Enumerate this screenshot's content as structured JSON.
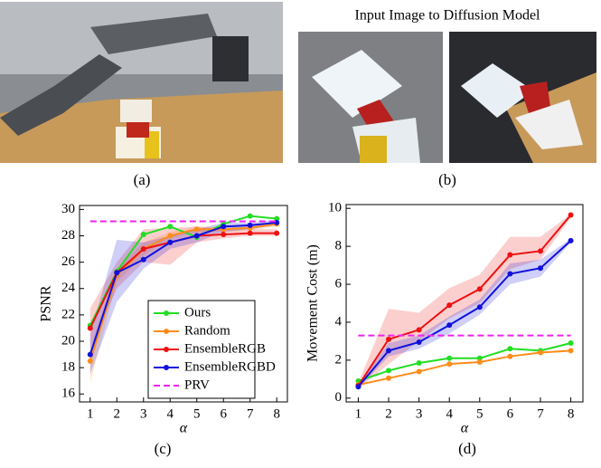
{
  "image_title": "Input Image to Diffusion Model",
  "captions": {
    "a": "(a)",
    "b": "(b)"
  },
  "chart_data": [
    {
      "type": "line",
      "caption": "(c)",
      "x_label": "α",
      "y_label": "PSNR",
      "x": [
        1,
        2,
        3,
        4,
        5,
        6,
        7,
        8
      ],
      "xlim": [
        0.6,
        8.4
      ],
      "xticks": [
        1,
        2,
        3,
        4,
        5,
        6,
        7,
        8
      ],
      "ylim": [
        15.4,
        30.3
      ],
      "yticks": [
        16,
        18,
        20,
        22,
        24,
        26,
        28,
        30
      ],
      "legend": "lower-right",
      "series": [
        {
          "name": "Ours",
          "color": "#22dd22",
          "values": [
            21.2,
            25.3,
            28.1,
            28.7,
            27.9,
            28.9,
            29.5,
            29.3
          ]
        },
        {
          "name": "Random",
          "color": "#ff8c1a",
          "values": [
            18.5,
            25.0,
            27.0,
            28.0,
            28.5,
            28.5,
            28.6,
            28.9
          ],
          "lower": [
            16.8,
            24.5,
            26.5,
            27.8,
            28.3,
            28.3,
            28.4,
            28.7
          ],
          "upper": [
            19.5,
            25.5,
            27.5,
            28.3,
            28.7,
            28.7,
            28.8,
            29.1
          ]
        },
        {
          "name": "EnsembleRGB",
          "color": "#ee1111",
          "values": [
            21.0,
            25.2,
            27.0,
            27.5,
            28.0,
            28.1,
            28.2,
            28.2
          ],
          "lower": [
            19.5,
            24,
            26,
            25.8,
            27.5,
            27.8,
            28.0,
            28.0
          ],
          "upper": [
            22.5,
            26,
            28.5,
            28.6,
            28.7,
            28.5,
            28.5,
            28.5
          ]
        },
        {
          "name": "EnsembleRGBD",
          "color": "#1111dd",
          "values": [
            19.0,
            25.2,
            26.2,
            27.5,
            28.0,
            28.7,
            28.8,
            29.0
          ],
          "lower": [
            17.5,
            23,
            25.5,
            27.0,
            27.5,
            28.3,
            28.5,
            28.8
          ],
          "upper": [
            20.5,
            27.7,
            27.5,
            28.0,
            28.5,
            29.0,
            29.0,
            29.2
          ]
        },
        {
          "name": "PRV",
          "color": "#ee22ee",
          "style": "dashed",
          "values": [
            29.1,
            29.1,
            29.1,
            29.1,
            29.1,
            29.1,
            29.1,
            29.1
          ]
        }
      ]
    },
    {
      "type": "line",
      "caption": "(d)",
      "x_label": "α",
      "y_label": "Movement Cost (m)",
      "x": [
        1,
        2,
        3,
        4,
        5,
        6,
        7,
        8
      ],
      "xlim": [
        0.6,
        8.4
      ],
      "xticks": [
        1,
        2,
        3,
        4,
        5,
        6,
        7,
        8
      ],
      "ylim": [
        -0.2,
        10.2
      ],
      "yticks": [
        0,
        2,
        4,
        6,
        8,
        10
      ],
      "series": [
        {
          "color": "#22dd22",
          "values": [
            0.9,
            1.45,
            1.85,
            2.1,
            2.1,
            2.6,
            2.5,
            2.9
          ]
        },
        {
          "color": "#ff8c1a",
          "values": [
            0.7,
            1.05,
            1.4,
            1.8,
            1.9,
            2.2,
            2.4,
            2.5
          ]
        },
        {
          "color": "#ee1111",
          "values": [
            0.65,
            3.1,
            3.6,
            4.9,
            5.75,
            7.55,
            7.75,
            9.65
          ],
          "lower": [
            0.5,
            1.8,
            3.0,
            4.2,
            5.0,
            6.8,
            7.3,
            9.5
          ],
          "upper": [
            0.8,
            4.7,
            4.5,
            5.8,
            6.5,
            8.5,
            8.5,
            9.7
          ]
        },
        {
          "color": "#1111dd",
          "values": [
            0.6,
            2.5,
            2.95,
            3.85,
            4.8,
            6.55,
            6.85,
            8.3
          ],
          "lower": [
            0.5,
            2.2,
            2.6,
            3.4,
            4.4,
            6.0,
            6.4,
            8.2
          ],
          "upper": [
            0.7,
            2.9,
            3.3,
            4.3,
            5.2,
            7.1,
            7.3,
            8.4
          ]
        },
        {
          "color": "#ee22ee",
          "style": "dashed",
          "values": [
            3.3,
            3.3,
            3.3,
            3.3,
            3.3,
            3.3,
            3.3,
            3.3
          ]
        }
      ]
    }
  ]
}
